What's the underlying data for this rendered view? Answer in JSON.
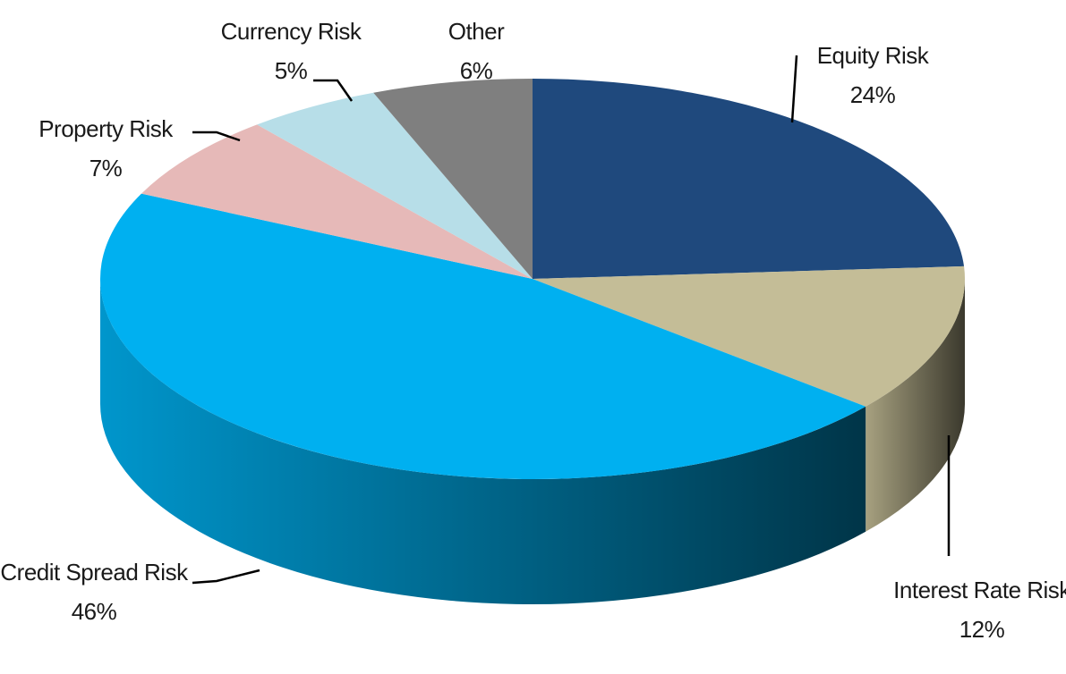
{
  "chart_data": {
    "type": "pie",
    "categories": [
      "Equity Risk",
      "Interest Rate Risk",
      "Credit Spread Risk",
      "Property Risk",
      "Currency Risk",
      "Other"
    ],
    "values": [
      24,
      12,
      46,
      7,
      5,
      6
    ],
    "value_labels": [
      "24%",
      "12%",
      "46%",
      "7%",
      "5%",
      "6%"
    ],
    "colors": [
      "#1f497d",
      "#c4bd97",
      "#00b0f0",
      "#e6b9b8",
      "#b7dee8",
      "#7f7f7f"
    ]
  }
}
